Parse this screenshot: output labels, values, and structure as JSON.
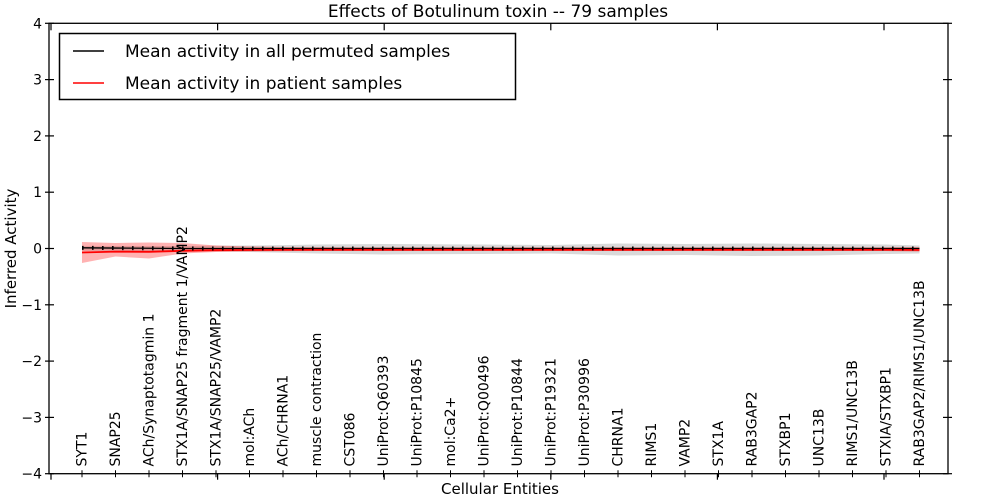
{
  "chart_data": {
    "type": "line",
    "title": "Effects of Botulinum toxin -- 79 samples",
    "xlabel": "Cellular Entities",
    "ylabel": "Inferred Activity",
    "ylim": [
      -4,
      4
    ],
    "ytick_labels": [
      "4",
      "3",
      "2",
      "1",
      "0",
      "−1",
      "−2",
      "−3",
      "−4"
    ],
    "grid": false,
    "legend_position": "upper left",
    "categories": [
      "SYT1",
      "SNAP25",
      "ACh/Synaptotagmin 1",
      "STX1A/SNAP25 fragment 1/VAMP2",
      "STX1A/SNAP25/VAMP2",
      "mol:ACh",
      "ACh/CHRNA1",
      "muscle contraction",
      "CST086",
      "UniProt:Q60393",
      "UniProt:P10845",
      "mol:Ca2+",
      "UniProt:Q00496",
      "UniProt:P10844",
      "UniProt:P19321",
      "UniProt:P30996",
      "CHRNA1",
      "RIMS1",
      "VAMP2",
      "STX1A",
      "RAB3GAP2",
      "STXBP1",
      "UNC13B",
      "RIMS1/UNC13B",
      "STXIA/STXBP1",
      "RAB3GAP2/RIMS1/UNC13B"
    ],
    "series": [
      {
        "name": "Mean activity in all permuted samples",
        "color": "#000000",
        "values": [
          0.012,
          0.008,
          0.004,
          0.0,
          0.0,
          0.0,
          0.0,
          0.0,
          0.0,
          0.0,
          0.0,
          0.0,
          0.0,
          0.0,
          0.0,
          0.0,
          0.0,
          0.0,
          0.0,
          0.0,
          0.0,
          0.0,
          0.0,
          0.0,
          0.0,
          0.0
        ],
        "band_color": "rgba(0,0,0,0.15)",
        "band_upper": [
          0.04,
          0.045,
          0.045,
          0.045,
          0.05,
          0.053,
          0.06,
          0.07,
          0.075,
          0.08,
          0.078,
          0.074,
          0.071,
          0.066,
          0.062,
          0.075,
          0.089,
          0.085,
          0.08,
          0.085,
          0.089,
          0.085,
          0.08,
          0.075,
          0.071,
          0.053
        ],
        "band_lower": [
          -0.04,
          -0.044,
          -0.044,
          -0.044,
          -0.05,
          -0.062,
          -0.075,
          -0.089,
          -0.098,
          -0.107,
          -0.103,
          -0.1,
          -0.098,
          -0.093,
          -0.089,
          -0.106,
          -0.124,
          -0.12,
          -0.115,
          -0.124,
          -0.133,
          -0.128,
          -0.124,
          -0.111,
          -0.098,
          -0.089
        ]
      },
      {
        "name": "Mean activity in patient samples",
        "color": "#ff0000",
        "values": [
          -0.071,
          -0.055,
          -0.059,
          -0.041,
          -0.03,
          -0.027,
          -0.025,
          -0.023,
          -0.023,
          -0.023,
          -0.023,
          -0.023,
          -0.023,
          -0.023,
          -0.023,
          -0.023,
          -0.023,
          -0.023,
          -0.023,
          -0.023,
          -0.023,
          -0.023,
          -0.023,
          -0.023,
          -0.023,
          -0.027
        ],
        "band_color": "rgba(255,0,0,0.3)",
        "band_upper": [
          0.115,
          0.098,
          0.107,
          0.098,
          0.053,
          0.036,
          0.027,
          0.025,
          0.023,
          0.023,
          0.023,
          0.023,
          0.023,
          0.023,
          0.023,
          0.023,
          0.023,
          0.023,
          0.023,
          0.023,
          0.023,
          0.023,
          0.023,
          0.023,
          0.023,
          0.027
        ],
        "band_lower": [
          -0.258,
          -0.142,
          -0.178,
          -0.089,
          -0.062,
          -0.053,
          -0.048,
          -0.045,
          -0.045,
          -0.045,
          -0.045,
          -0.045,
          -0.045,
          -0.045,
          -0.045,
          -0.045,
          -0.045,
          -0.045,
          -0.045,
          -0.045,
          -0.045,
          -0.045,
          -0.045,
          -0.045,
          -0.045,
          -0.055
        ]
      }
    ]
  }
}
